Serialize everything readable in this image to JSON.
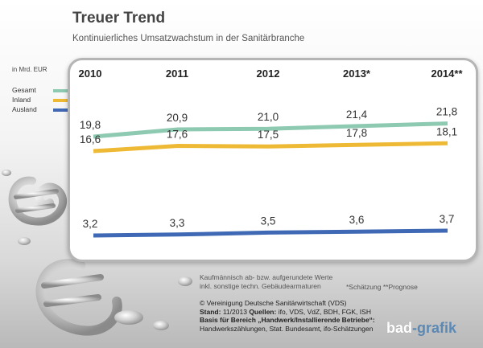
{
  "header": {
    "title": "Treuer Trend",
    "subtitle": "Kontinuierliches Umsatzwachstum in der Sanitärbranche"
  },
  "unit_label": "in Mrd. EUR",
  "legend": [
    {
      "name": "Gesamt",
      "color": "#8ec9b1"
    },
    {
      "name": "Inland",
      "color": "#eeb935"
    },
    {
      "name": "Ausland",
      "color": "#3f69b4"
    }
  ],
  "chart_data": {
    "type": "line",
    "x": [
      "2010",
      "2011",
      "2012",
      "2013*",
      "2014**"
    ],
    "series": [
      {
        "name": "Gesamt",
        "values": [
          19.8,
          20.9,
          21.0,
          21.4,
          21.8
        ],
        "labels": [
          "19,8",
          "20,9",
          "21,0",
          "21,4",
          "21,8"
        ],
        "color": "#8ec9b1"
      },
      {
        "name": "Inland",
        "values": [
          16.6,
          17.6,
          17.5,
          17.8,
          18.1
        ],
        "labels": [
          "16,6",
          "17,6",
          "17,5",
          "17,8",
          "18,1"
        ],
        "color": "#eeb935"
      },
      {
        "name": "Ausland",
        "values": [
          3.2,
          3.3,
          3.5,
          3.6,
          3.7
        ],
        "labels": [
          "3,2",
          "3,3",
          "3,5",
          "3,6",
          "3,7"
        ],
        "color": "#3f69b4"
      }
    ],
    "grid": false,
    "legend_position": "left"
  },
  "notes": {
    "line1": "Kaufmännisch ab- bzw. aufgerundete Werte",
    "line2": "inkl. sonstige techn. Gebäudearmaturen",
    "footnote": "*Schätzung   **Prognose"
  },
  "source": {
    "copyright": "© Vereinigung Deutsche Sanitärwirtschaft (VDS)",
    "stand_label": "Stand:",
    "stand_value": "11/2013",
    "quellen_label": "Quellen:",
    "quellen_value": "ifo, VDS, VdZ, BDH, FGK, ISH",
    "basis_label": "Basis für Bereich „Handwerk/Installierende Betriebe“:",
    "basis_value": "Handwerkszählungen, Stat. Bundesamt, ifo-Schätzungen"
  },
  "logo": {
    "part1": "bad",
    "part2": "-grafik"
  }
}
